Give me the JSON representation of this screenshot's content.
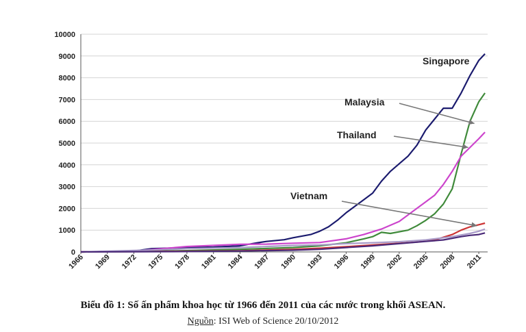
{
  "chart_data": {
    "type": "line",
    "title": "",
    "xlabel": "",
    "ylabel": "",
    "xlim": [
      1966,
      2012
    ],
    "ylim": [
      0,
      10000
    ],
    "x_ticks": [
      1966,
      1969,
      1972,
      1975,
      1978,
      1981,
      1984,
      1987,
      1990,
      1993,
      1996,
      1999,
      2002,
      2005,
      2008,
      2011
    ],
    "y_ticks": [
      0,
      1000,
      2000,
      3000,
      4000,
      5000,
      6000,
      7000,
      8000,
      9000,
      10000
    ],
    "grid": "horizontal",
    "series": [
      {
        "name": "Singapore",
        "color": "#1b1b6e",
        "points": [
          [
            1966,
            0
          ],
          [
            1969,
            20
          ],
          [
            1972,
            40
          ],
          [
            1974,
            150
          ],
          [
            1975,
            160
          ],
          [
            1978,
            200
          ],
          [
            1981,
            220
          ],
          [
            1984,
            280
          ],
          [
            1986,
            420
          ],
          [
            1987,
            480
          ],
          [
            1989,
            560
          ],
          [
            1990,
            650
          ],
          [
            1992,
            800
          ],
          [
            1993,
            950
          ],
          [
            1994,
            1150
          ],
          [
            1995,
            1450
          ],
          [
            1996,
            1800
          ],
          [
            1997,
            2100
          ],
          [
            1998,
            2400
          ],
          [
            1999,
            2700
          ],
          [
            2000,
            3250
          ],
          [
            2001,
            3700
          ],
          [
            2002,
            4050
          ],
          [
            2003,
            4400
          ],
          [
            2004,
            4900
          ],
          [
            2005,
            5600
          ],
          [
            2006,
            6100
          ],
          [
            2007,
            6600
          ],
          [
            2008,
            6600
          ],
          [
            2009,
            7300
          ],
          [
            2010,
            8100
          ],
          [
            2011,
            8800
          ],
          [
            2011.7,
            9100
          ]
        ]
      },
      {
        "name": "Malaysia",
        "color": "#3f8a3a",
        "points": [
          [
            1966,
            0
          ],
          [
            1972,
            20
          ],
          [
            1978,
            60
          ],
          [
            1984,
            120
          ],
          [
            1990,
            200
          ],
          [
            1993,
            280
          ],
          [
            1996,
            420
          ],
          [
            1998,
            600
          ],
          [
            1999,
            700
          ],
          [
            2000,
            900
          ],
          [
            2001,
            850
          ],
          [
            2003,
            1000
          ],
          [
            2004,
            1200
          ],
          [
            2005,
            1450
          ],
          [
            2006,
            1750
          ],
          [
            2007,
            2200
          ],
          [
            2008,
            2900
          ],
          [
            2009,
            4500
          ],
          [
            2010,
            6000
          ],
          [
            2011,
            6900
          ],
          [
            2011.7,
            7300
          ]
        ]
      },
      {
        "name": "Thailand",
        "color": "#cc44cc",
        "points": [
          [
            1966,
            0
          ],
          [
            1972,
            40
          ],
          [
            1975,
            140
          ],
          [
            1978,
            250
          ],
          [
            1981,
            300
          ],
          [
            1984,
            350
          ],
          [
            1987,
            360
          ],
          [
            1990,
            400
          ],
          [
            1993,
            430
          ],
          [
            1996,
            600
          ],
          [
            1998,
            800
          ],
          [
            2000,
            1050
          ],
          [
            2002,
            1400
          ],
          [
            2004,
            2000
          ],
          [
            2005,
            2300
          ],
          [
            2006,
            2600
          ],
          [
            2007,
            3100
          ],
          [
            2008,
            3700
          ],
          [
            2009,
            4400
          ],
          [
            2010,
            4800
          ],
          [
            2011,
            5200
          ],
          [
            2011.7,
            5500
          ]
        ]
      },
      {
        "name": "Vietnam",
        "color": "#cc3333",
        "points": [
          [
            1966,
            0
          ],
          [
            1978,
            30
          ],
          [
            1984,
            50
          ],
          [
            1990,
            120
          ],
          [
            1993,
            170
          ],
          [
            1996,
            240
          ],
          [
            1999,
            320
          ],
          [
            2002,
            400
          ],
          [
            2004,
            450
          ],
          [
            2006,
            550
          ],
          [
            2008,
            800
          ],
          [
            2009,
            1000
          ],
          [
            2010,
            1150
          ],
          [
            2011,
            1250
          ],
          [
            2011.7,
            1320
          ]
        ]
      },
      {
        "name": "",
        "color": "#a89ac8",
        "points": [
          [
            1966,
            0
          ],
          [
            1975,
            100
          ],
          [
            1978,
            150
          ],
          [
            1984,
            200
          ],
          [
            1987,
            250
          ],
          [
            1990,
            300
          ],
          [
            1993,
            320
          ],
          [
            1996,
            380
          ],
          [
            1999,
            420
          ],
          [
            2002,
            470
          ],
          [
            2005,
            550
          ],
          [
            2008,
            700
          ],
          [
            2010,
            850
          ],
          [
            2011,
            950
          ],
          [
            2011.7,
            1050
          ]
        ]
      },
      {
        "name": "",
        "color": "#4a2a78",
        "points": [
          [
            1966,
            0
          ],
          [
            1978,
            20
          ],
          [
            1984,
            40
          ],
          [
            1990,
            80
          ],
          [
            1993,
            120
          ],
          [
            1996,
            200
          ],
          [
            1999,
            280
          ],
          [
            2002,
            380
          ],
          [
            2005,
            480
          ],
          [
            2007,
            550
          ],
          [
            2009,
            700
          ],
          [
            2010,
            760
          ],
          [
            2011,
            800
          ],
          [
            2011.7,
            870
          ]
        ]
      }
    ],
    "annotations": [
      {
        "text": "Singapore",
        "target_series": 0
      },
      {
        "text": "Malaysia",
        "target_series": 1,
        "arrow_to": [
          2010.5,
          5900
        ]
      },
      {
        "text": "Thailand",
        "target_series": 2,
        "arrow_to": [
          2009.8,
          4800
        ]
      },
      {
        "text": "Vietnam",
        "target_series": 3,
        "arrow_to": [
          2010.8,
          1200
        ]
      }
    ]
  },
  "caption": "Biểu đồ 1: Số ấn phẩm khoa học từ 1966 đến 2011 của các nước trong khối ASEAN.",
  "source": {
    "label": "Nguồn",
    "text": ": ISI Web of Science 20/10/2012"
  }
}
